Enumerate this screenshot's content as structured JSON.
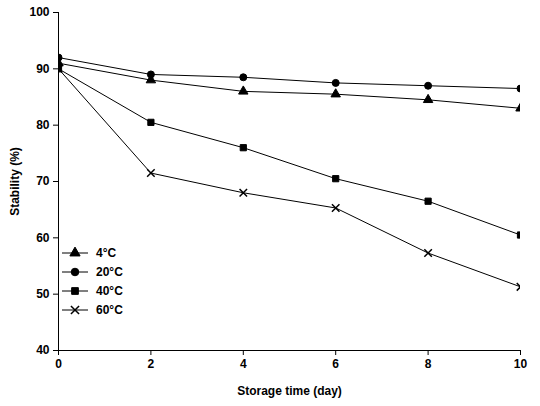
{
  "chart_data": {
    "type": "line",
    "x_label": "Storage time (day)",
    "y_label": "Stability (%)",
    "x": [
      0,
      2,
      4,
      6,
      8,
      10
    ],
    "xlim": [
      0,
      10
    ],
    "xticks": [
      0,
      2,
      4,
      6,
      8,
      10
    ],
    "ylim": [
      40,
      100
    ],
    "yticks": [
      40,
      50,
      60,
      70,
      80,
      90,
      100
    ],
    "grid": false,
    "legend": "lower left",
    "series": [
      {
        "name": "4°C",
        "color": "#000000",
        "marker": "triangle",
        "line_style": "solid",
        "values": [
          91,
          88,
          86,
          85.5,
          84.5,
          83
        ]
      },
      {
        "name": "20°C",
        "color": "#000000",
        "marker": "circle",
        "line_style": "solid",
        "values": [
          92,
          89,
          88.5,
          87.5,
          87,
          86.5
        ]
      },
      {
        "name": "40°C",
        "color": "#000000",
        "marker": "square",
        "line_style": "solid",
        "values": [
          90,
          80.5,
          76,
          70.5,
          66.5,
          60.5
        ]
      },
      {
        "name": "60°C",
        "color": "#000000",
        "marker": "x",
        "line_style": "solid",
        "values": [
          90,
          71.5,
          68,
          65.3,
          57.3,
          51.3
        ]
      }
    ]
  }
}
